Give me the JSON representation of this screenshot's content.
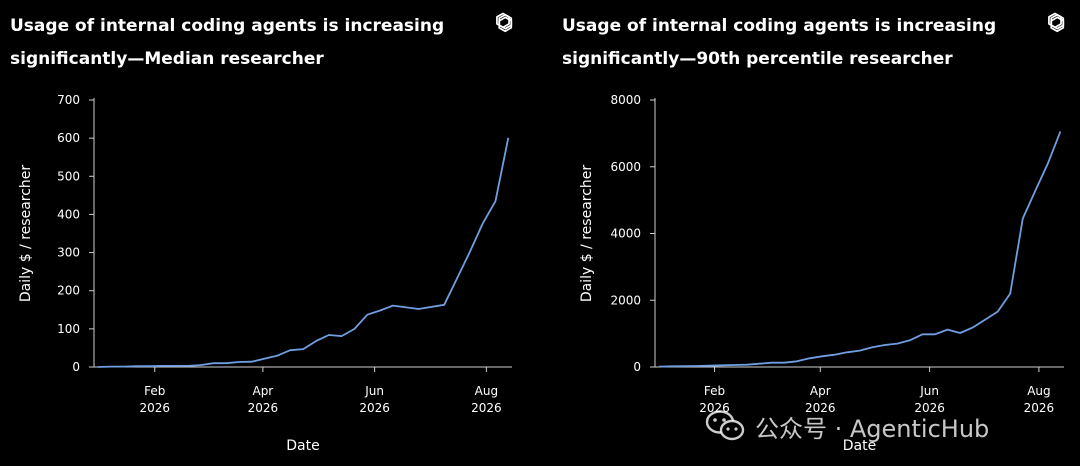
{
  "chart_data": [
    {
      "type": "line",
      "title": "Usage of internal coding agents is increasing significantly—Median researcher",
      "xlabel": "Date",
      "ylabel": "Daily $ / researcher",
      "x_ticks": [
        {
          "date": "2026-02-01",
          "month": "Feb",
          "year": "2026"
        },
        {
          "date": "2026-04-01",
          "month": "Apr",
          "year": "2026"
        },
        {
          "date": "2026-06-01",
          "month": "Jun",
          "year": "2026"
        },
        {
          "date": "2026-08-01",
          "month": "Aug",
          "year": "2026"
        }
      ],
      "xlim": [
        "2026-01-01",
        "2026-08-15"
      ],
      "ylim": [
        0,
        700
      ],
      "y_ticks": [
        0,
        100,
        200,
        300,
        400,
        500,
        600,
        700
      ],
      "color": "#6f9fe0",
      "grid": false,
      "series": [
        {
          "x": [
            "2026-01-01",
            "2026-01-08",
            "2026-01-15",
            "2026-01-22",
            "2026-01-29",
            "2026-02-05",
            "2026-02-12",
            "2026-02-19",
            "2026-02-26",
            "2026-03-05",
            "2026-03-12",
            "2026-03-19",
            "2026-03-26",
            "2026-04-02",
            "2026-04-09",
            "2026-04-16",
            "2026-04-23",
            "2026-04-30",
            "2026-05-07",
            "2026-05-14",
            "2026-05-21",
            "2026-05-28",
            "2026-06-04",
            "2026-06-11",
            "2026-06-25",
            "2026-07-09",
            "2026-07-16",
            "2026-07-23",
            "2026-07-30",
            "2026-08-06",
            "2026-08-13"
          ],
          "values": [
            0,
            1,
            1,
            2,
            2,
            3,
            3,
            3,
            5,
            10,
            10,
            13,
            14,
            22,
            30,
            44,
            47,
            68,
            84,
            81,
            100,
            137,
            148,
            161,
            152,
            163,
            232,
            302,
            376,
            435,
            601
          ]
        }
      ]
    },
    {
      "type": "line",
      "title": "Usage of internal coding agents is increasing significantly—90th percentile researcher",
      "xlabel": "Date",
      "ylabel": "Daily $ / researcher",
      "x_ticks": [
        {
          "date": "2026-02-01",
          "month": "Feb",
          "year": "2026"
        },
        {
          "date": "2026-04-01",
          "month": "Apr",
          "year": "2026"
        },
        {
          "date": "2026-06-01",
          "month": "Jun",
          "year": "2026"
        },
        {
          "date": "2026-08-01",
          "month": "Aug",
          "year": "2026"
        }
      ],
      "xlim": [
        "2026-01-01",
        "2026-08-15"
      ],
      "ylim": [
        0,
        8000
      ],
      "y_ticks": [
        0,
        2000,
        4000,
        6000,
        8000
      ],
      "color": "#6f9fe0",
      "grid": false,
      "series": [
        {
          "x": [
            "2026-01-01",
            "2026-01-08",
            "2026-01-15",
            "2026-01-22",
            "2026-01-29",
            "2026-02-05",
            "2026-02-12",
            "2026-02-19",
            "2026-02-26",
            "2026-03-05",
            "2026-03-12",
            "2026-03-19",
            "2026-03-26",
            "2026-04-02",
            "2026-04-09",
            "2026-04-16",
            "2026-04-23",
            "2026-04-30",
            "2026-05-07",
            "2026-05-14",
            "2026-05-21",
            "2026-05-28",
            "2026-06-04",
            "2026-06-11",
            "2026-06-18",
            "2026-06-25",
            "2026-07-02",
            "2026-07-09",
            "2026-07-16",
            "2026-07-23",
            "2026-07-30",
            "2026-08-06",
            "2026-08-13"
          ],
          "values": [
            10,
            20,
            25,
            30,
            40,
            50,
            60,
            70,
            100,
            130,
            130,
            170,
            260,
            320,
            370,
            440,
            490,
            590,
            660,
            700,
            800,
            980,
            980,
            1120,
            1020,
            1180,
            1420,
            1660,
            2200,
            4450,
            5280,
            6100,
            7060
          ]
        }
      ]
    }
  ],
  "watermark": {
    "text": "公众号 · AgenticHub",
    "icon": "wechat-icon"
  }
}
